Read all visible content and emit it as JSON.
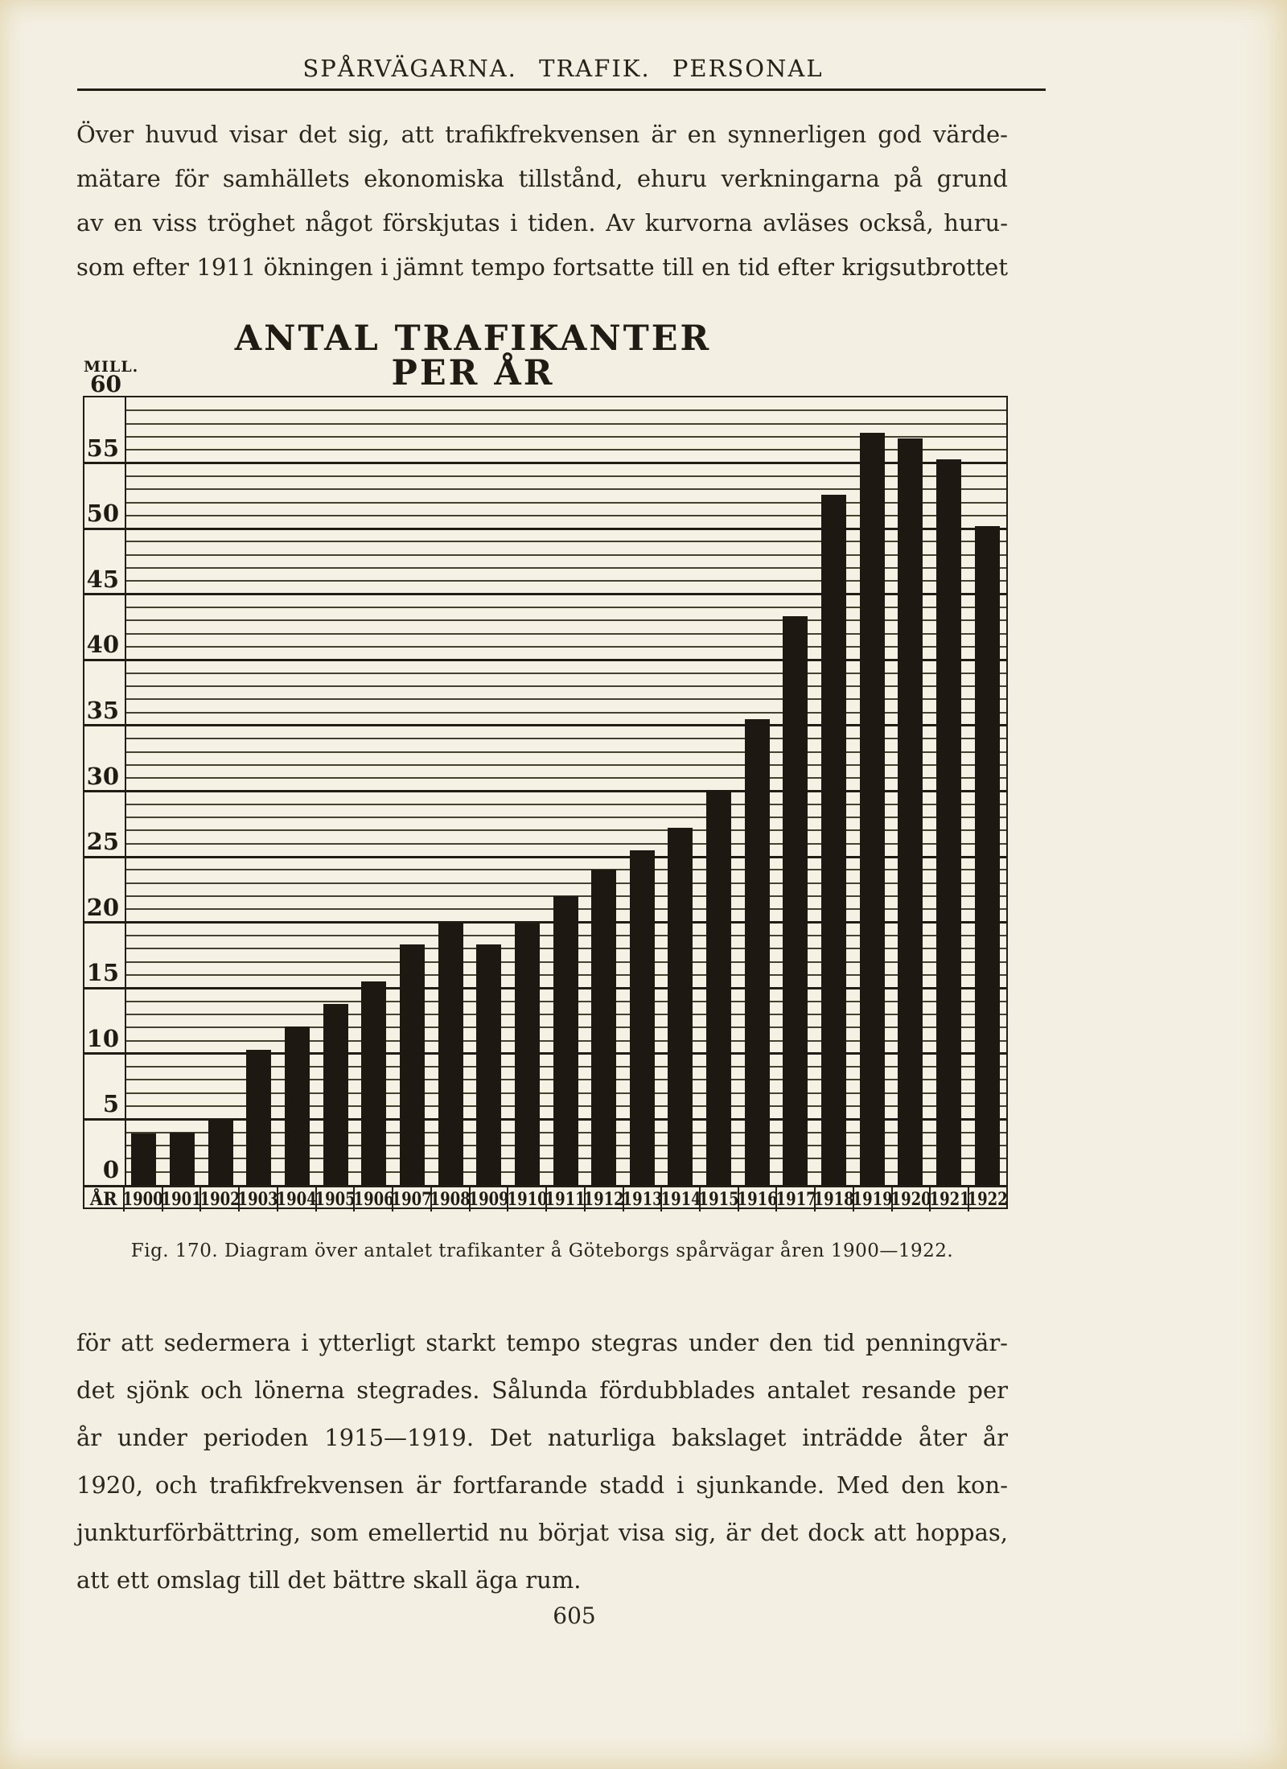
{
  "page": {
    "header": "SPÅRVÄGARNA. TRAFIK. PERSONAL",
    "caption": "Fig. 170.  Diagram över antalet trafikanter å Göteborgs spårvägar åren 1900—1922.",
    "page_number": "605"
  },
  "paragraphs": {
    "top": {
      "justify_last": true,
      "lines": [
        "Över huvud visar det sig, att trafikfrekvensen är en synnerligen god värde-",
        "mätare för samhällets ekonomiska tillstånd, ehuru verkningarna på grund",
        "av en viss tröghet något förskjutas i tiden.  Av kurvorna avläses också, huru-",
        "som efter 1911 ökningen i jämnt tempo fortsatte till en tid efter krigsutbrottet"
      ]
    },
    "bottom": {
      "justify_last": false,
      "lines": [
        "för att sedermera i ytterligt starkt tempo stegras under den tid penningvär-",
        "det sjönk och lönerna stegrades.  Sålunda fördubblades antalet resande per",
        "år under perioden 1915—1919.  Det naturliga bakslaget inträdde åter år",
        "1920, och trafikfrekvensen är fortfarande stadd i sjunkande.  Med den kon-",
        "junkturförbättring, som emellertid nu börjat visa sig, är det dock att hoppas,",
        "att ett omslag till det bättre skall äga rum."
      ]
    }
  },
  "chart": {
    "title": "ANTAL TRAFIKANTER PER ÅR",
    "unit_label": "MILL.",
    "y_max_label": "60",
    "x_axis_corner_label": "ÅR"
  },
  "chart_data": {
    "type": "bar",
    "title": "ANTAL TRAFIKANTER PER ÅR",
    "ylabel": "MILL.",
    "xlabel": "ÅR",
    "categories": [
      "1900",
      "1901",
      "1902",
      "1903",
      "1904",
      "1905",
      "1906",
      "1907",
      "1908",
      "1909",
      "1910",
      "1911",
      "1912",
      "1913",
      "1914",
      "1915",
      "1916",
      "1917",
      "1918",
      "1919",
      "1920",
      "1921",
      "1922"
    ],
    "values": [
      3.9,
      4.0,
      5.0,
      10.3,
      12.1,
      13.8,
      15.5,
      18.3,
      20.0,
      18.3,
      19.9,
      22.0,
      24.0,
      25.5,
      27.2,
      30.1,
      35.5,
      43.3,
      52.6,
      57.3,
      56.9,
      55.3,
      50.2
    ],
    "ylim": [
      0,
      60
    ],
    "y_major_tick_step": 5,
    "y_minor_tick_step": 1,
    "y_major_tick_labels": [
      "0",
      "5",
      "10",
      "15",
      "20",
      "25",
      "30",
      "35",
      "40",
      "45",
      "50",
      "55",
      "60"
    ],
    "grid": "horizontal",
    "legend": "none",
    "bar_color": "#1d1812"
  },
  "colors": {
    "paper": "#f3efe2",
    "ink": "#2b261f",
    "bar": "#1d1812",
    "grid_minor": "#46402f",
    "grid_major": "#211c15"
  }
}
